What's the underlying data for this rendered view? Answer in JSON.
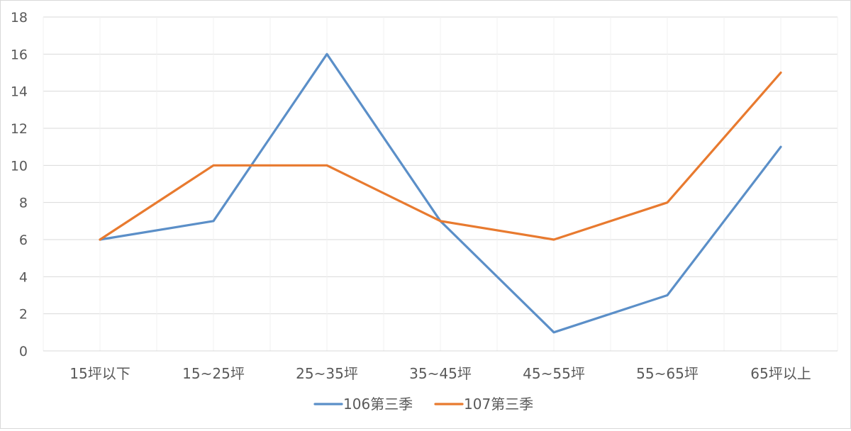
{
  "chart_data": {
    "type": "line",
    "title": "",
    "xlabel": "",
    "ylabel": "",
    "categories": [
      "15坪以下",
      "15~25坪",
      "25~35坪",
      "35~45坪",
      "45~55坪",
      "55~65坪",
      "65坪以上"
    ],
    "ylim": [
      0,
      18
    ],
    "yticks": [
      0,
      2,
      4,
      6,
      8,
      10,
      12,
      14,
      16,
      18
    ],
    "grid": true,
    "legend_position": "bottom",
    "series": [
      {
        "name": "106第三季",
        "color": "#5b8fc8",
        "values": [
          6,
          7,
          16,
          7,
          1,
          3,
          11
        ]
      },
      {
        "name": "107第三季",
        "color": "#e87a2f",
        "values": [
          6,
          10,
          10,
          7,
          6,
          8,
          15
        ]
      }
    ]
  }
}
